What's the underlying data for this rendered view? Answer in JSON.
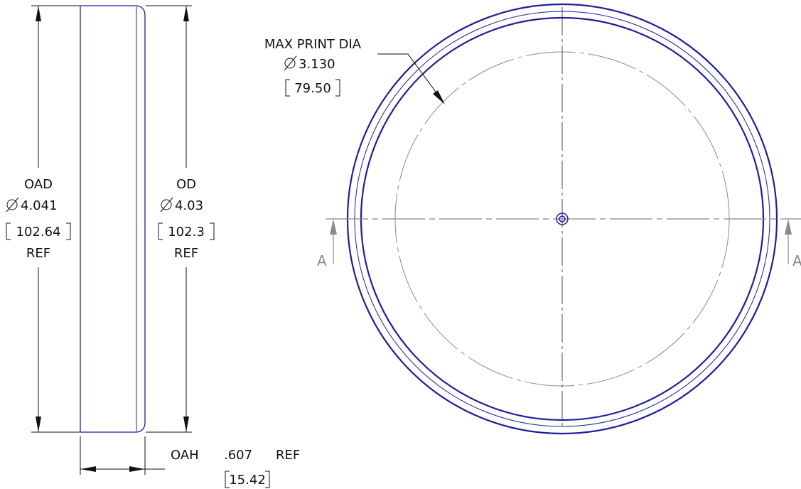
{
  "side_view": {
    "oad": {
      "label": "OAD",
      "value": "4.041",
      "metric": "102.64",
      "ref": "REF"
    },
    "od": {
      "label": "OD",
      "value": "4.03",
      "metric": "102.3",
      "ref": "REF"
    },
    "oah": {
      "label": "OAH",
      "value": ".607",
      "metric": "15.42",
      "ref": "REF"
    }
  },
  "top_view": {
    "max_print": {
      "label": "MAX PRINT DIA",
      "value": "3.130",
      "metric": "79.50"
    },
    "section_label_left": "A",
    "section_label_right": "A"
  },
  "colors": {
    "part": "#1f1f9a",
    "centerline": "#222222",
    "print_circle": "#8a8a8a",
    "section": "#888888"
  }
}
